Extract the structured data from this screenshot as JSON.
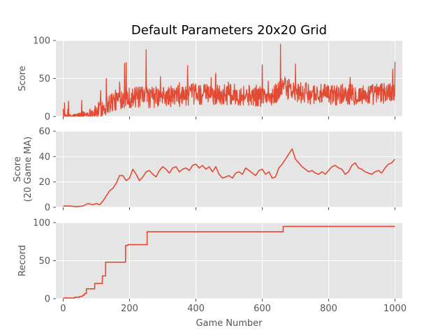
{
  "figure_title": "Default Parameters 20x20 Grid",
  "xlabel": "Game Number",
  "colors": {
    "line": "#E24A33",
    "panel_bg": "#E5E5E5",
    "grid": "#FFFFFF",
    "tick_text": "#555555"
  },
  "chart_data": [
    {
      "type": "line",
      "ylabel": "Score",
      "ylabel2": "",
      "xlim": [
        -22,
        1022
      ],
      "ylim": [
        0,
        100
      ],
      "xticks": [
        0,
        200,
        400,
        600,
        800,
        1000
      ],
      "yticks": [
        0,
        50,
        100
      ],
      "xtick_labels_visible": false,
      "grid": true,
      "series": [
        {
          "kind": "noisy",
          "x_range": [
            0,
            1000
          ],
          "keypoints": [
            [
              0,
              0
            ],
            [
              40,
              1
            ],
            [
              70,
              3
            ],
            [
              100,
              6
            ],
            [
              120,
              12
            ],
            [
              140,
              18
            ],
            [
              180,
              25
            ],
            [
              250,
              25
            ],
            [
              300,
              26
            ],
            [
              350,
              27
            ],
            [
              400,
              30
            ],
            [
              450,
              28
            ],
            [
              500,
              29
            ],
            [
              550,
              28
            ],
            [
              600,
              27
            ],
            [
              630,
              24
            ],
            [
              660,
              40
            ],
            [
              700,
              31
            ],
            [
              750,
              30
            ],
            [
              800,
              28
            ],
            [
              850,
              30
            ],
            [
              900,
              28
            ],
            [
              950,
              30
            ],
            [
              1000,
              33
            ]
          ],
          "spread": 14,
          "peaks": [
            [
              130,
              50
            ],
            [
              185,
              70
            ],
            [
              190,
              71
            ],
            [
              250,
              88
            ],
            [
              655,
              95
            ],
            [
              600,
              68
            ],
            [
              375,
              67
            ],
            [
              460,
              57
            ],
            [
              700,
              69
            ],
            [
              1000,
              72
            ]
          ]
        }
      ]
    },
    {
      "type": "line",
      "ylabel": "Score",
      "ylabel2": "(20 Game MA)",
      "xlim": [
        -22,
        1022
      ],
      "ylim": [
        0,
        60
      ],
      "xticks": [
        0,
        200,
        400,
        600,
        800,
        1000
      ],
      "yticks": [
        0,
        20,
        40,
        60
      ],
      "xtick_labels_visible": false,
      "grid": true,
      "series": [
        {
          "kind": "points",
          "points": [
            [
              0,
              1
            ],
            [
              20,
              1
            ],
            [
              40,
              0.5
            ],
            [
              60,
              1
            ],
            [
              75,
              3
            ],
            [
              90,
              2
            ],
            [
              100,
              3
            ],
            [
              110,
              2
            ],
            [
              120,
              5
            ],
            [
              130,
              9
            ],
            [
              140,
              13
            ],
            [
              150,
              15
            ],
            [
              160,
              19
            ],
            [
              170,
              25
            ],
            [
              180,
              25
            ],
            [
              190,
              21
            ],
            [
              200,
              23
            ],
            [
              210,
              30
            ],
            [
              220,
              26
            ],
            [
              230,
              21
            ],
            [
              240,
              24
            ],
            [
              250,
              28
            ],
            [
              260,
              29
            ],
            [
              270,
              26
            ],
            [
              280,
              24
            ],
            [
              290,
              29
            ],
            [
              300,
              32
            ],
            [
              310,
              30
            ],
            [
              320,
              27
            ],
            [
              330,
              31
            ],
            [
              340,
              32
            ],
            [
              350,
              28
            ],
            [
              360,
              30
            ],
            [
              370,
              31
            ],
            [
              380,
              29
            ],
            [
              390,
              33
            ],
            [
              400,
              34
            ],
            [
              410,
              31
            ],
            [
              420,
              33
            ],
            [
              430,
              30
            ],
            [
              440,
              32
            ],
            [
              450,
              28
            ],
            [
              460,
              32
            ],
            [
              470,
              26
            ],
            [
              480,
              23
            ],
            [
              490,
              24
            ],
            [
              500,
              25
            ],
            [
              510,
              23
            ],
            [
              520,
              27
            ],
            [
              530,
              28
            ],
            [
              540,
              26
            ],
            [
              550,
              31
            ],
            [
              560,
              29
            ],
            [
              570,
              27
            ],
            [
              580,
              25
            ],
            [
              590,
              29
            ],
            [
              600,
              30
            ],
            [
              610,
              26
            ],
            [
              620,
              28
            ],
            [
              630,
              23
            ],
            [
              640,
              24
            ],
            [
              650,
              31
            ],
            [
              660,
              34
            ],
            [
              670,
              38
            ],
            [
              680,
              42
            ],
            [
              690,
              46
            ],
            [
              700,
              38
            ],
            [
              710,
              35
            ],
            [
              720,
              32
            ],
            [
              730,
              30
            ],
            [
              740,
              28
            ],
            [
              750,
              29
            ],
            [
              760,
              27
            ],
            [
              770,
              26
            ],
            [
              780,
              28
            ],
            [
              790,
              26
            ],
            [
              800,
              29
            ],
            [
              810,
              32
            ],
            [
              820,
              33
            ],
            [
              830,
              31
            ],
            [
              840,
              30
            ],
            [
              850,
              26
            ],
            [
              860,
              28
            ],
            [
              870,
              33
            ],
            [
              880,
              35
            ],
            [
              890,
              31
            ],
            [
              900,
              30
            ],
            [
              910,
              28
            ],
            [
              920,
              27
            ],
            [
              930,
              26
            ],
            [
              940,
              28
            ],
            [
              950,
              29
            ],
            [
              960,
              27
            ],
            [
              970,
              31
            ],
            [
              980,
              34
            ],
            [
              990,
              35
            ],
            [
              1000,
              38
            ]
          ]
        }
      ]
    },
    {
      "type": "line",
      "ylabel": "Record",
      "ylabel2": "",
      "xlim": [
        -22,
        1022
      ],
      "ylim": [
        0,
        100
      ],
      "xticks": [
        0,
        200,
        400,
        600,
        800,
        1000
      ],
      "yticks": [
        0,
        50,
        100
      ],
      "xtick_labels_visible": true,
      "grid": true,
      "series": [
        {
          "kind": "step",
          "points": [
            [
              0,
              1
            ],
            [
              30,
              1
            ],
            [
              35,
              2
            ],
            [
              50,
              3
            ],
            [
              58,
              4
            ],
            [
              60,
              5
            ],
            [
              65,
              7
            ],
            [
              70,
              13
            ],
            [
              90,
              13
            ],
            [
              95,
              20
            ],
            [
              115,
              20
            ],
            [
              118,
              30
            ],
            [
              125,
              30
            ],
            [
              128,
              48
            ],
            [
              185,
              48
            ],
            [
              188,
              70
            ],
            [
              195,
              71
            ],
            [
              250,
              71
            ],
            [
              253,
              88
            ],
            [
              660,
              88
            ],
            [
              663,
              95
            ],
            [
              1000,
              95
            ]
          ]
        }
      ]
    }
  ]
}
